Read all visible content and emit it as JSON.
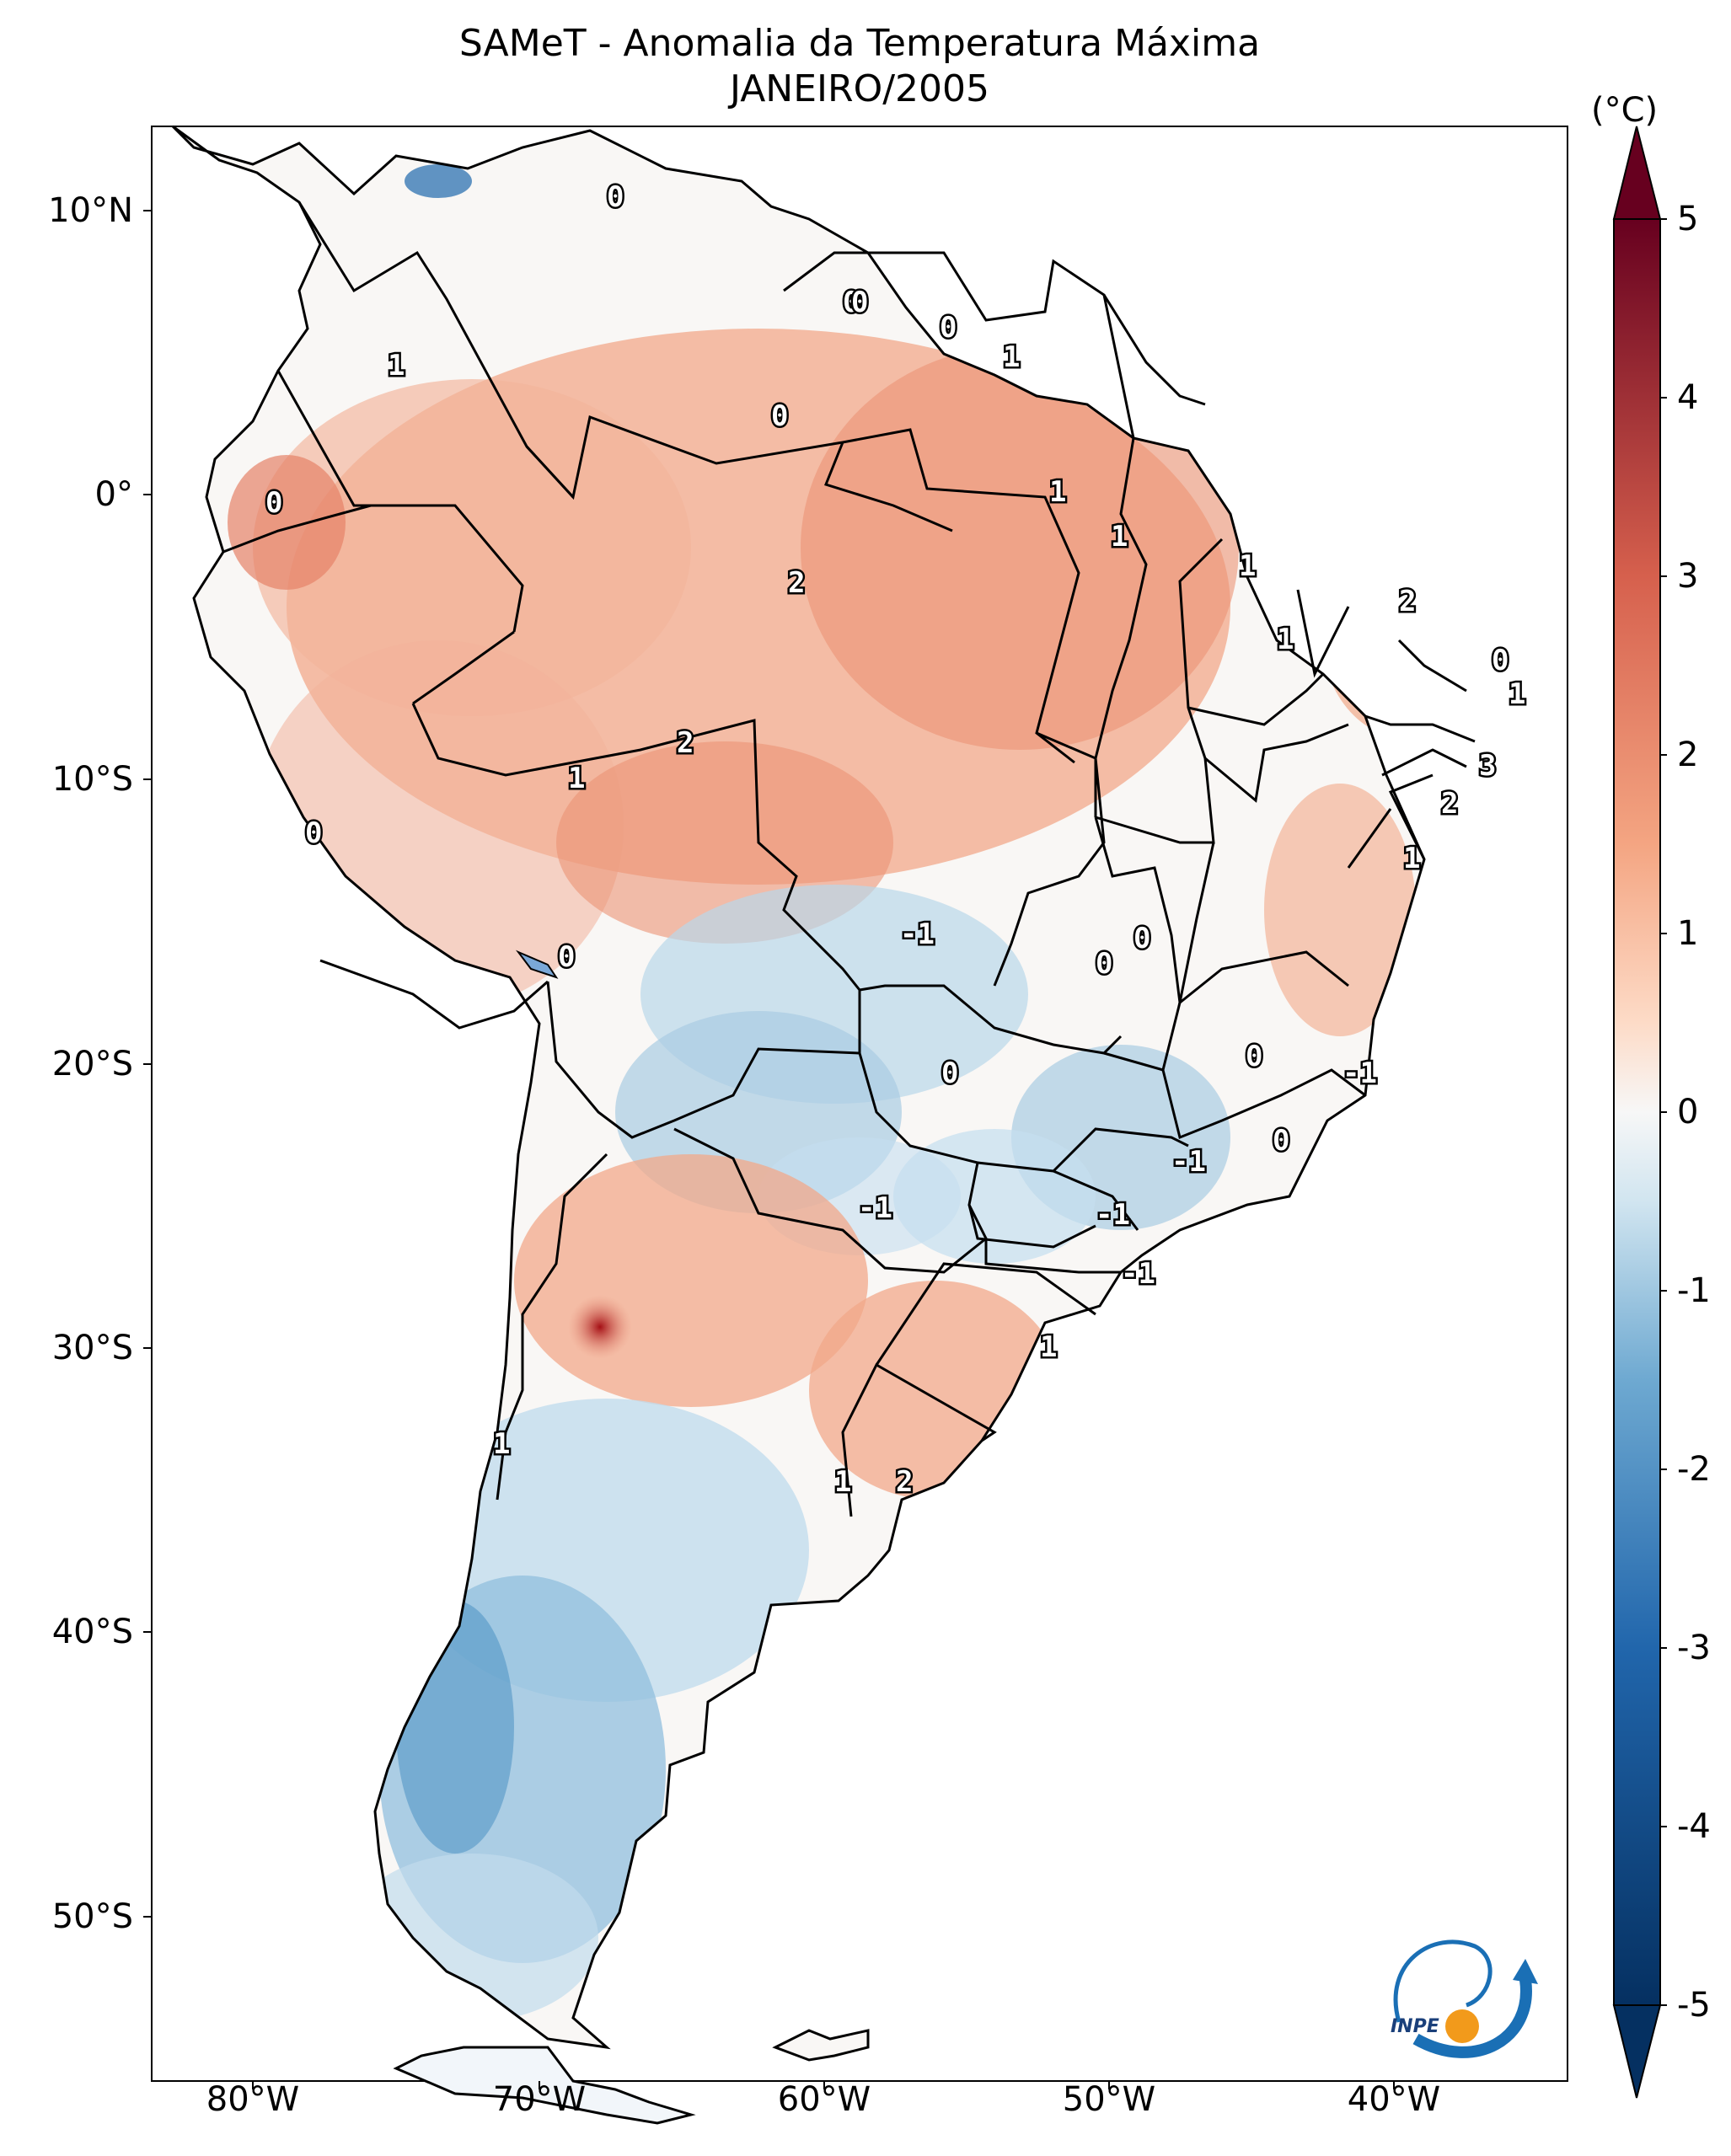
{
  "title": {
    "line1": "SAMeT - Anomalia da Temperatura Máxima",
    "line2": "JANEIRO/2005"
  },
  "colorbar": {
    "unit": "(°C)",
    "ticks": [
      "5",
      "4",
      "3",
      "2",
      "1",
      "0",
      "-1",
      "-2",
      "-3",
      "-4",
      "-5"
    ],
    "range": [
      -5,
      5
    ],
    "colors": {
      "neg_max": "#053061",
      "neg_mid": "#4393c3",
      "neutral": "#f7f7f7",
      "pos_mid": "#d6604d",
      "pos_max": "#67001f"
    }
  },
  "axes": {
    "lat_labels": [
      "10°N",
      "0°",
      "10°S",
      "20°S",
      "30°S",
      "40°S",
      "50°S"
    ],
    "lon_labels": [
      "80°W",
      "70°W",
      "60°W",
      "50°W",
      "40°W"
    ]
  },
  "contour_labels": [
    "0",
    "1",
    "0",
    "0",
    "0",
    "1",
    "0",
    "0",
    "1",
    "1",
    "0",
    "2",
    "2",
    "1",
    "2",
    "0",
    "1",
    "1",
    "1",
    "3",
    "2",
    "1",
    "-1",
    "0",
    "0",
    "0",
    "0",
    "0",
    "-1",
    "0",
    "-1",
    "-1",
    "-1",
    "1",
    "-1",
    "1",
    "2"
  ],
  "logo": {
    "text": "INPE"
  }
}
